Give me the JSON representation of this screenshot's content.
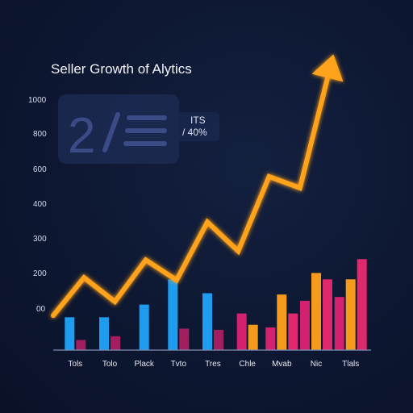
{
  "chart_data": {
    "type": "bar",
    "title": "Seller Growth of Alytics",
    "y_tick_labels": [
      "1000",
      "800",
      "600",
      "400",
      "300",
      "200",
      "00"
    ],
    "categories": [
      "Tols",
      "Tolo",
      "Plack",
      "Tvto",
      "Tres",
      "Chle",
      "Mvab",
      "Nic",
      "Tlals"
    ],
    "series": [
      {
        "color": "#1d9cf0",
        "values": [
          0.26,
          0.26,
          0.36,
          0.56,
          0.45,
          0.0,
          0.0,
          0.0,
          0.0
        ]
      },
      {
        "color": "#d4216f",
        "values": [
          0.08,
          0.11,
          0.0,
          0.17,
          0.16,
          0.29,
          0.18,
          0.39,
          0.42
        ]
      },
      {
        "color": "#f59a1a",
        "values": [
          0.0,
          0.0,
          0.0,
          0.0,
          0.0,
          0.2,
          0.44,
          0.61,
          0.56
        ]
      },
      {
        "color": "#e0286c",
        "values": [
          0.0,
          0.0,
          0.0,
          0.0,
          0.0,
          0.0,
          0.29,
          0.56,
          0.72
        ]
      }
    ],
    "trend": {
      "color": "#ffa21a",
      "values": [
        0.12,
        0.42,
        0.23,
        0.56,
        0.4,
        0.86,
        0.63,
        1.22,
        1.13,
        2.1
      ]
    },
    "grid": false,
    "legend": "none"
  },
  "card": {
    "big_number": "2",
    "tag_line1": "ITS",
    "tag_line2": "/ 40%"
  },
  "colors": {
    "background": "#0d1731",
    "card_bg": "#1c2a52",
    "axis": "#7f8db3"
  }
}
